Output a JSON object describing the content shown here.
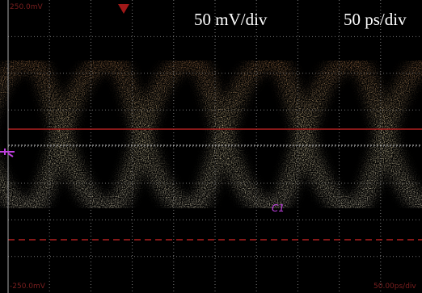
{
  "screen": {
    "top_voltage": "250.0mV",
    "bottom_voltage": "-250.0mV",
    "volts_per_div": "50 mV/div",
    "time_per_div": "50 ps/div",
    "time_scale": "50.00ps/div",
    "channel": "C1"
  }
}
